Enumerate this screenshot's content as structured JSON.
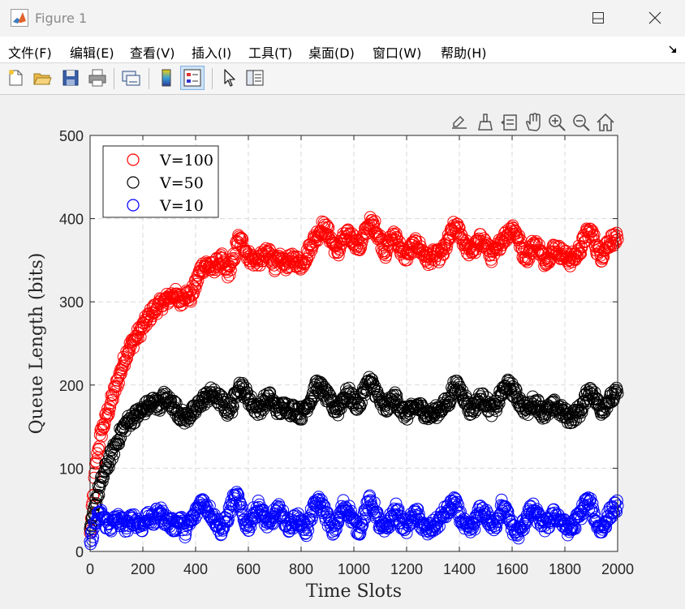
{
  "window": {
    "title": "Figure 1",
    "buttons": [
      "minimize",
      "maximize",
      "close"
    ]
  },
  "menu": [
    "文件(F)",
    "编辑(E)",
    "查看(V)",
    "插入(I)",
    "工具(T)",
    "桌面(D)",
    "窗口(W)",
    "帮助(H)"
  ],
  "toolbar": {
    "icons": [
      "new-figure-icon",
      "open-file-icon",
      "save-icon",
      "print-icon",
      "link-plot-icon",
      "colorbar-icon",
      "legend-icon",
      "edit-plot-icon",
      "property-inspector-icon"
    ]
  },
  "axes_toolbar": {
    "icons": [
      "export-icon",
      "brush-icon",
      "data-tips-icon",
      "pan-icon",
      "zoom-in-icon",
      "zoom-out-icon",
      "home-icon"
    ]
  },
  "colors": {
    "V100": "#ff0000",
    "V50": "#000000",
    "V10": "#0000ff"
  },
  "chart_data": {
    "type": "scatter",
    "marker": "open-circle",
    "xlabel": "Time Slots",
    "ylabel": "Queue Length (bits)",
    "xlim": [
      0,
      2000
    ],
    "ylim": [
      0,
      500
    ],
    "xticks": [
      0,
      200,
      400,
      600,
      800,
      1000,
      1200,
      1400,
      1600,
      1800,
      2000
    ],
    "yticks": [
      0,
      100,
      200,
      300,
      400,
      500
    ],
    "grid": true,
    "legend": "top-left",
    "series": [
      {
        "name": "V=100",
        "color": "#ff0000",
        "x": [
          0,
          20,
          40,
          60,
          80,
          100,
          120,
          140,
          160,
          180,
          200,
          220,
          240,
          260,
          280,
          300,
          320,
          340,
          360,
          380,
          400,
          420,
          440,
          460,
          480,
          500,
          520,
          540,
          560,
          580,
          600,
          620,
          640,
          660,
          680,
          700,
          720,
          740,
          760,
          780,
          800,
          820,
          840,
          860,
          880,
          900,
          920,
          940,
          960,
          980,
          1000,
          1020,
          1040,
          1060,
          1080,
          1100,
          1120,
          1140,
          1160,
          1180,
          1200,
          1220,
          1240,
          1260,
          1280,
          1300,
          1320,
          1340,
          1360,
          1380,
          1400,
          1420,
          1440,
          1460,
          1480,
          1500,
          1520,
          1540,
          1560,
          1580,
          1600,
          1620,
          1640,
          1660,
          1680,
          1700,
          1720,
          1740,
          1760,
          1780,
          1800,
          1820,
          1840,
          1860,
          1880,
          1900,
          1920,
          1940,
          1960,
          1980,
          2000
        ],
        "y": [
          20,
          100,
          140,
          160,
          180,
          200,
          220,
          240,
          250,
          260,
          270,
          280,
          290,
          295,
          300,
          305,
          310,
          300,
          310,
          305,
          320,
          340,
          345,
          340,
          345,
          350,
          335,
          345,
          375,
          370,
          355,
          350,
          350,
          355,
          360,
          345,
          350,
          345,
          350,
          350,
          345,
          355,
          370,
          380,
          390,
          385,
          370,
          360,
          375,
          380,
          375,
          365,
          380,
          395,
          390,
          375,
          360,
          375,
          380,
          360,
          355,
          365,
          370,
          360,
          350,
          355,
          355,
          360,
          375,
          390,
          385,
          370,
          360,
          365,
          375,
          370,
          355,
          360,
          375,
          380,
          390,
          380,
          360,
          355,
          370,
          365,
          350,
          355,
          365,
          360,
          355,
          350,
          355,
          365,
          380,
          385,
          365,
          355,
          370,
          375,
          375
        ]
      },
      {
        "name": "V=50",
        "color": "#000000",
        "x": [
          0,
          20,
          40,
          60,
          80,
          100,
          120,
          140,
          160,
          180,
          200,
          220,
          240,
          260,
          280,
          300,
          320,
          340,
          360,
          380,
          400,
          420,
          440,
          460,
          480,
          500,
          520,
          540,
          560,
          580,
          600,
          620,
          640,
          660,
          680,
          700,
          720,
          740,
          760,
          780,
          800,
          820,
          840,
          860,
          880,
          900,
          920,
          940,
          960,
          980,
          1000,
          1020,
          1040,
          1060,
          1080,
          1100,
          1120,
          1140,
          1160,
          1180,
          1200,
          1220,
          1240,
          1260,
          1280,
          1300,
          1320,
          1340,
          1360,
          1380,
          1400,
          1420,
          1440,
          1460,
          1480,
          1500,
          1520,
          1540,
          1560,
          1580,
          1600,
          1620,
          1640,
          1660,
          1680,
          1700,
          1720,
          1740,
          1760,
          1780,
          1800,
          1820,
          1840,
          1860,
          1880,
          1900,
          1920,
          1940,
          1960,
          1980,
          2000
        ],
        "y": [
          20,
          60,
          80,
          100,
          115,
          130,
          145,
          155,
          160,
          165,
          170,
          175,
          180,
          175,
          185,
          180,
          175,
          165,
          160,
          165,
          170,
          180,
          185,
          190,
          185,
          180,
          170,
          175,
          200,
          195,
          185,
          175,
          170,
          180,
          185,
          175,
          170,
          175,
          170,
          170,
          165,
          175,
          185,
          200,
          195,
          185,
          175,
          170,
          185,
          190,
          180,
          175,
          195,
          205,
          195,
          180,
          170,
          180,
          185,
          170,
          165,
          170,
          175,
          170,
          165,
          165,
          170,
          175,
          180,
          200,
          195,
          185,
          170,
          175,
          185,
          180,
          170,
          175,
          190,
          200,
          195,
          185,
          175,
          170,
          180,
          175,
          165,
          170,
          175,
          170,
          165,
          160,
          165,
          170,
          185,
          195,
          180,
          170,
          180,
          185,
          190
        ]
      },
      {
        "name": "V=10",
        "color": "#0000ff",
        "x": [
          0,
          20,
          40,
          60,
          80,
          100,
          120,
          140,
          160,
          180,
          200,
          220,
          240,
          260,
          280,
          300,
          320,
          340,
          360,
          380,
          400,
          420,
          440,
          460,
          480,
          500,
          520,
          540,
          560,
          580,
          600,
          620,
          640,
          660,
          680,
          700,
          720,
          740,
          760,
          780,
          800,
          820,
          840,
          860,
          880,
          900,
          920,
          940,
          960,
          980,
          1000,
          1020,
          1040,
          1060,
          1080,
          1100,
          1120,
          1140,
          1160,
          1180,
          1200,
          1220,
          1240,
          1260,
          1280,
          1300,
          1320,
          1340,
          1360,
          1380,
          1400,
          1420,
          1440,
          1460,
          1480,
          1500,
          1520,
          1540,
          1560,
          1580,
          1600,
          1620,
          1640,
          1660,
          1680,
          1700,
          1720,
          1740,
          1760,
          1780,
          1800,
          1820,
          1840,
          1860,
          1880,
          1900,
          1920,
          1940,
          1960,
          1980,
          2000
        ],
        "y": [
          10,
          35,
          45,
          35,
          30,
          40,
          35,
          30,
          40,
          35,
          30,
          45,
          35,
          50,
          40,
          35,
          30,
          40,
          25,
          35,
          45,
          60,
          55,
          45,
          35,
          25,
          40,
          60,
          65,
          40,
          30,
          45,
          55,
          40,
          30,
          45,
          50,
          35,
          30,
          40,
          35,
          25,
          45,
          60,
          55,
          40,
          25,
          35,
          55,
          50,
          35,
          25,
          45,
          60,
          50,
          30,
          25,
          40,
          50,
          35,
          30,
          40,
          45,
          30,
          25,
          30,
          35,
          45,
          50,
          60,
          45,
          30,
          25,
          35,
          50,
          45,
          30,
          35,
          55,
          45,
          30,
          20,
          30,
          45,
          50,
          40,
          30,
          35,
          45,
          40,
          30,
          25,
          35,
          45,
          60,
          55,
          35,
          25,
          40,
          50,
          55
        ]
      }
    ]
  }
}
